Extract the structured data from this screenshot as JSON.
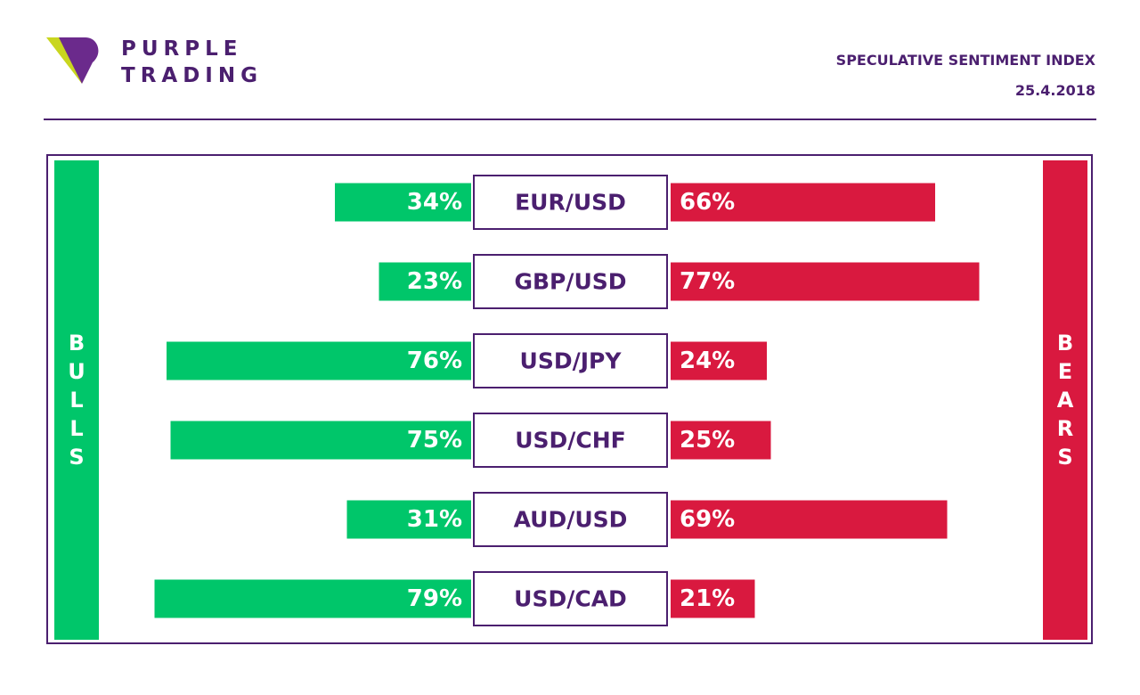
{
  "brand": {
    "line1": "PURPLE",
    "line2": "TRADING"
  },
  "report": {
    "title": "SPECULATIVE SENTIMENT INDEX",
    "date": "25.4.2018"
  },
  "colors": {
    "bulls": "#00c66a",
    "bears": "#d9193f",
    "purple": "#4b1f6f",
    "logo_yellow": "#c9d61f",
    "logo_purple": "#6b2a8c"
  },
  "side_labels": {
    "bulls": "BULLS",
    "bears": "BEARS"
  },
  "chart_data": {
    "type": "bar",
    "title": "SPECULATIVE SENTIMENT INDEX",
    "categories": [
      "EUR/USD",
      "GBP/USD",
      "USD/JPY",
      "USD/CHF",
      "AUD/USD",
      "USD/CAD"
    ],
    "series": [
      {
        "name": "BULLS",
        "values": [
          34,
          23,
          76,
          75,
          31,
          79
        ],
        "labels": [
          "34%",
          "23%",
          "76%",
          "75%",
          "31%",
          "79%"
        ]
      },
      {
        "name": "BEARS",
        "values": [
          66,
          77,
          24,
          25,
          69,
          21
        ],
        "labels": [
          "66%",
          "77%",
          "24%",
          "25%",
          "69%",
          "21%"
        ]
      }
    ]
  }
}
